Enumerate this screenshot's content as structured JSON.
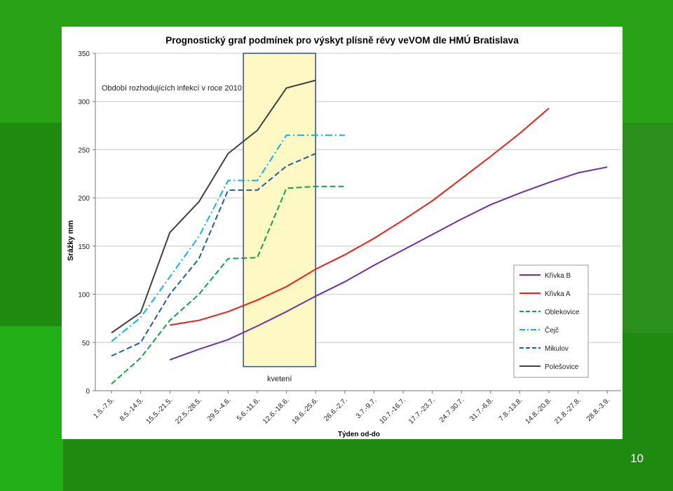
{
  "slide": {
    "number": "10"
  },
  "chart_data": {
    "type": "line",
    "title": "Prognostický graf podmínek pro výskyt plísně révy veVOM dle HMÚ Bratislava",
    "xlabel": "Týden od-do",
    "ylabel": "Srážky mm",
    "ylim": [
      0,
      350
    ],
    "yticks": [
      0,
      50,
      100,
      150,
      200,
      250,
      300,
      350
    ],
    "grid": true,
    "legend_position": "right",
    "categories": [
      "1.5.-7.5.",
      "8.5.-14.5.",
      "15.5.-21.5.",
      "22.5.-28.5.",
      "29.5.-4.6.",
      "5.6.-11.6.",
      "12.6.-18.6.",
      "19.6.-25.6.",
      "26.6.-2.7.",
      "3.7.-9.7.",
      "10.7.-16.7.",
      "17.7.-23.7.",
      "24.7.30.7.",
      "31.7.-6.8.",
      "7.8.-13.8.",
      "14.8.-20.8.",
      "21.8.-27.8.",
      "28.8.-3.9."
    ],
    "annotations": {
      "period_label": "Období rozhodujících infekcí v roce 2010",
      "bloom_label": "kvetení",
      "bloom_range": [
        "5.6.-11.6.",
        "19.6.-25.6."
      ]
    },
    "series": [
      {
        "name": "Křivka B",
        "color": "#7030a0",
        "style": "solid",
        "values": [
          null,
          null,
          32,
          43,
          53,
          67,
          82,
          98,
          113,
          130,
          146,
          162,
          178,
          193,
          205,
          216,
          226,
          232
        ]
      },
      {
        "name": "Křivka A",
        "color": "#e8211b",
        "style": "solid",
        "values": [
          null,
          null,
          68,
          73,
          82,
          94,
          108,
          126,
          141,
          158,
          177,
          197,
          220,
          243,
          267,
          293,
          null,
          null
        ]
      },
      {
        "name": "Oblekovice",
        "color": "#13a24a",
        "style": "dash",
        "values": [
          7,
          34,
          73,
          100,
          137,
          138,
          210,
          212,
          212,
          null,
          null,
          null,
          null,
          null,
          null,
          null,
          null,
          null
        ]
      },
      {
        "name": "Čejč",
        "color": "#11b2e0",
        "style": "dashdot",
        "values": [
          51,
          76,
          118,
          160,
          218,
          218,
          265,
          265,
          265,
          null,
          null,
          null,
          null,
          null,
          null,
          null,
          null,
          null
        ]
      },
      {
        "name": "Mikulov",
        "color": "#1f5ea8",
        "style": "dash",
        "values": [
          36,
          50,
          100,
          137,
          208,
          208,
          233,
          246,
          null,
          null,
          null,
          null,
          null,
          null,
          null,
          null,
          null,
          null
        ]
      },
      {
        "name": "Polešovice",
        "color": "#404040",
        "style": "solid",
        "values": [
          60,
          81,
          164,
          196,
          246,
          270,
          314,
          322,
          null,
          null,
          null,
          null,
          null,
          null,
          null,
          null,
          null,
          null
        ]
      }
    ]
  }
}
